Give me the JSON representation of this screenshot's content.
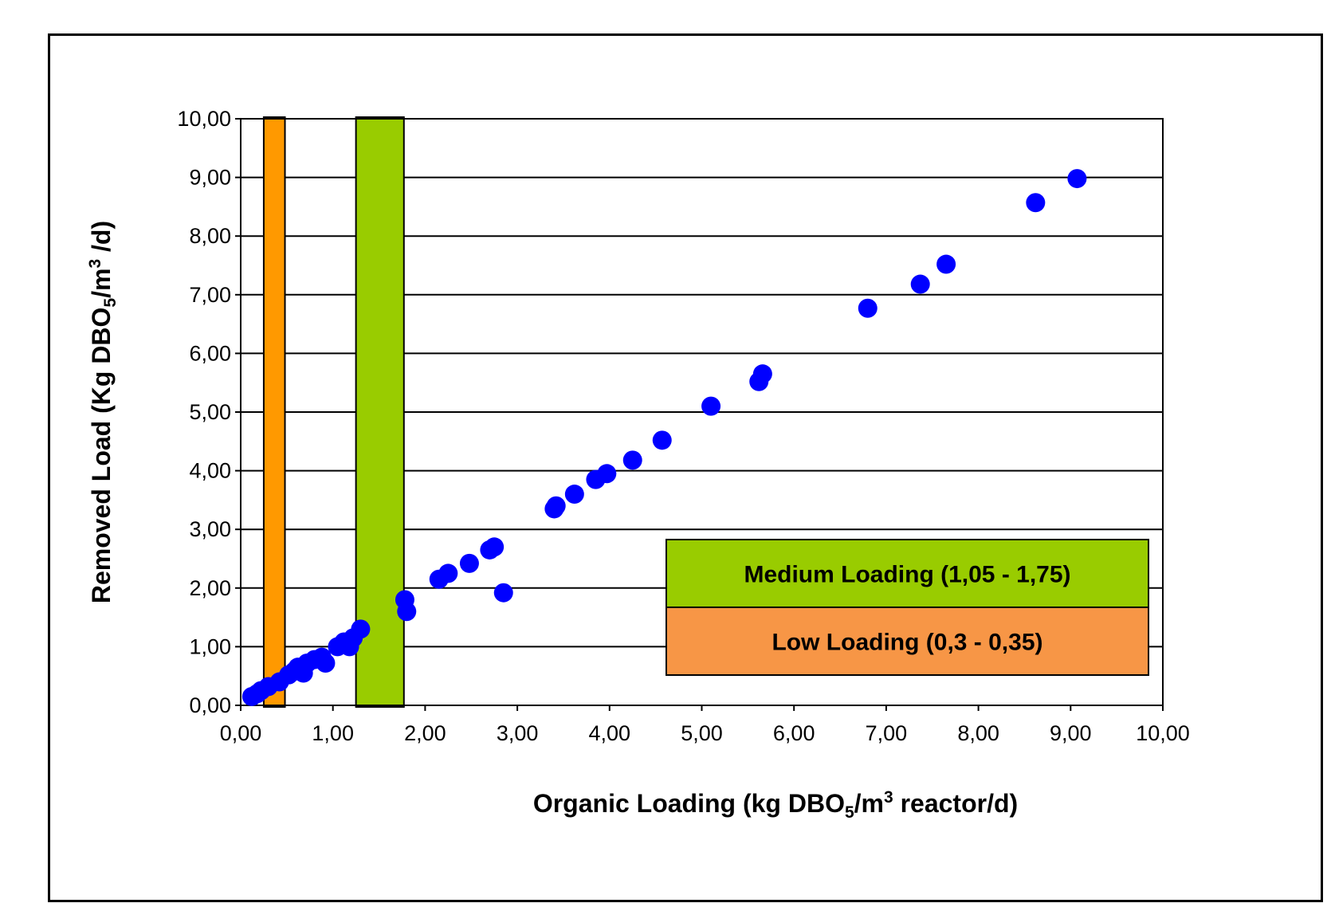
{
  "chart_data": {
    "type": "scatter",
    "xlim": [
      0,
      10
    ],
    "ylim": [
      0,
      10
    ],
    "x_ticks": [
      "0,00",
      "1,00",
      "2,00",
      "3,00",
      "4,00",
      "5,00",
      "6,00",
      "7,00",
      "8,00",
      "9,00",
      "10,00"
    ],
    "y_ticks": [
      "0,00",
      "1,00",
      "2,00",
      "3,00",
      "4,00",
      "5,00",
      "6,00",
      "7,00",
      "8,00",
      "9,00",
      "10,00"
    ],
    "grid": "horizontal",
    "xlabel": {
      "pre": "Organic Loading  (kg DBO",
      "sub": "5",
      "mid": "/m",
      "sup": "3",
      "post": " reactor/d)"
    },
    "ylabel": {
      "pre": "Removed Load (Kg DBO",
      "sub": "5",
      "mid": "/m",
      "sup": "3",
      "post": " /d)"
    },
    "bands": [
      {
        "name": "Low Loading (0,3 - 0,35)",
        "x_range": [
          0.25,
          0.48
        ],
        "color": "#ff9900"
      },
      {
        "name": "Medium Loading (1,05 - 1,75)",
        "x_range": [
          1.25,
          1.77
        ],
        "color": "#99cc00"
      }
    ],
    "legend": {
      "position": "lower-right",
      "items": [
        {
          "label": "Medium Loading (1,05 - 1,75)",
          "color": "#99cc00"
        },
        {
          "label": "Low Loading (0,3 - 0,35)",
          "color": "#f79646"
        }
      ]
    },
    "series": [
      {
        "color": "#0000ff",
        "points": [
          [
            0.12,
            0.15
          ],
          [
            0.18,
            0.2
          ],
          [
            0.22,
            0.25
          ],
          [
            0.3,
            0.32
          ],
          [
            0.42,
            0.4
          ],
          [
            0.52,
            0.52
          ],
          [
            0.58,
            0.58
          ],
          [
            0.62,
            0.65
          ],
          [
            0.68,
            0.55
          ],
          [
            0.72,
            0.72
          ],
          [
            0.8,
            0.78
          ],
          [
            0.88,
            0.82
          ],
          [
            0.92,
            0.72
          ],
          [
            1.05,
            1.0
          ],
          [
            1.12,
            1.08
          ],
          [
            1.18,
            1.0
          ],
          [
            1.22,
            1.15
          ],
          [
            1.3,
            1.3
          ],
          [
            1.78,
            1.8
          ],
          [
            1.8,
            1.6
          ],
          [
            2.15,
            2.15
          ],
          [
            2.25,
            2.25
          ],
          [
            2.48,
            2.42
          ],
          [
            2.7,
            2.65
          ],
          [
            2.75,
            2.7
          ],
          [
            2.85,
            1.92
          ],
          [
            3.4,
            3.35
          ],
          [
            3.42,
            3.4
          ],
          [
            3.62,
            3.6
          ],
          [
            3.85,
            3.85
          ],
          [
            3.97,
            3.95
          ],
          [
            4.25,
            4.18
          ],
          [
            4.57,
            4.52
          ],
          [
            5.1,
            5.1
          ],
          [
            5.62,
            5.52
          ],
          [
            5.66,
            5.65
          ],
          [
            6.8,
            6.77
          ],
          [
            7.37,
            7.18
          ],
          [
            7.65,
            7.52
          ],
          [
            8.62,
            8.57
          ],
          [
            9.07,
            8.98
          ]
        ]
      }
    ]
  }
}
